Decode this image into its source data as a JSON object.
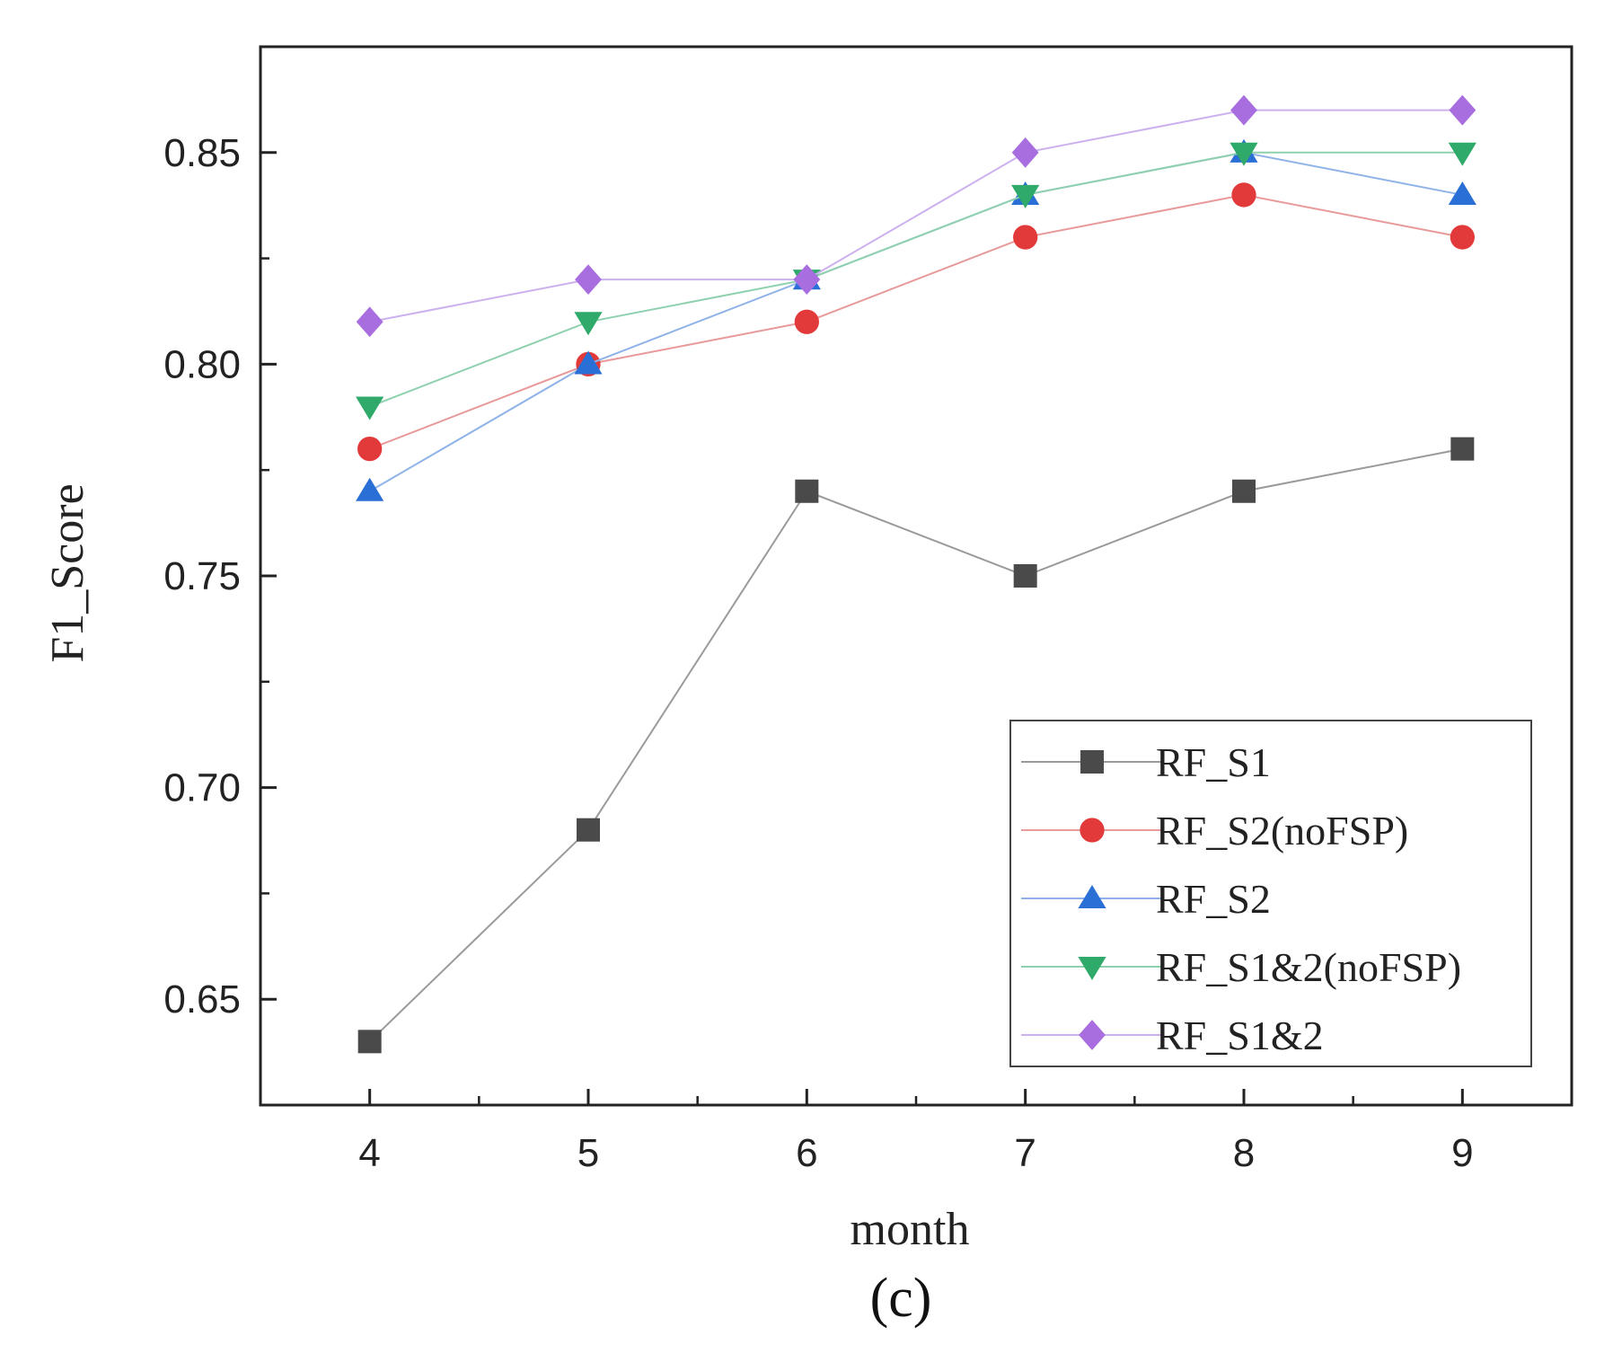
{
  "chart_data": {
    "type": "line",
    "xlabel": "month",
    "ylabel": "F1_Score",
    "caption": "(c)",
    "x": [
      4,
      5,
      6,
      7,
      8,
      9
    ],
    "xticks": [
      "4",
      "5",
      "6",
      "7",
      "8",
      "9"
    ],
    "xlim": [
      3.5,
      9.5
    ],
    "ylim": [
      0.625,
      0.875
    ],
    "yticks": [
      "0.65",
      "0.70",
      "0.75",
      "0.80",
      "0.85"
    ],
    "grid": false,
    "legend_position": "bottom-right",
    "series": [
      {
        "name": "RF_S1",
        "marker": "square",
        "color": "#4a4a4a",
        "line_color": "#9a9a9a",
        "values": [
          0.64,
          0.69,
          0.77,
          0.75,
          0.77,
          0.78
        ]
      },
      {
        "name": "RF_S2(noFSP)",
        "marker": "circle",
        "color": "#e23a3a",
        "line_color": "#e89a9a",
        "values": [
          0.78,
          0.8,
          0.81,
          0.83,
          0.84,
          0.83
        ]
      },
      {
        "name": "RF_S2",
        "marker": "triangle-up",
        "color": "#2a6fd6",
        "line_color": "#8fb3e8",
        "values": [
          0.77,
          0.8,
          0.82,
          0.84,
          0.85,
          0.84
        ]
      },
      {
        "name": "RF_S1&2(noFSP)",
        "marker": "triangle-down",
        "color": "#2faa6b",
        "line_color": "#8fd1ae",
        "values": [
          0.79,
          0.81,
          0.82,
          0.84,
          0.85,
          0.85
        ]
      },
      {
        "name": "RF_S1&2",
        "marker": "diamond",
        "color": "#a86ee0",
        "line_color": "#cdb0ee",
        "values": [
          0.81,
          0.82,
          0.82,
          0.85,
          0.86,
          0.86
        ]
      }
    ]
  }
}
